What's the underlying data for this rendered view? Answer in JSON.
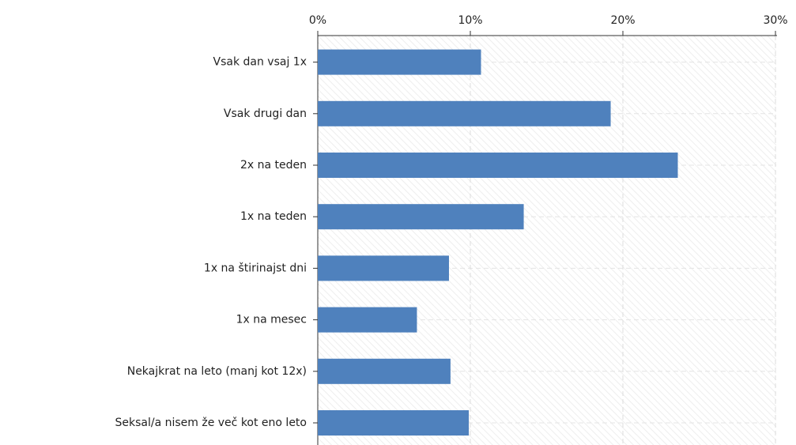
{
  "chart_data": {
    "type": "bar",
    "orientation": "horizontal",
    "categories": [
      "Vsak dan vsaj 1x",
      "Vsak drugi dan",
      "2x na teden",
      "1x na teden",
      "1x na štirinajst dni",
      "1x na mesec",
      "Nekajkrat na leto (manj kot 12x)",
      "Seksal/a nisem že več kot eno leto"
    ],
    "values": [
      10.7,
      19.2,
      23.6,
      13.5,
      8.6,
      6.5,
      8.7,
      9.9
    ],
    "color": "#4f81bd",
    "xlim": [
      0,
      30
    ],
    "xticks": [
      {
        "value": 0,
        "label": "0%"
      },
      {
        "value": 10,
        "label": "10%"
      },
      {
        "value": 20,
        "label": "20%"
      },
      {
        "value": 30,
        "label": "30%"
      }
    ],
    "grid": true
  }
}
